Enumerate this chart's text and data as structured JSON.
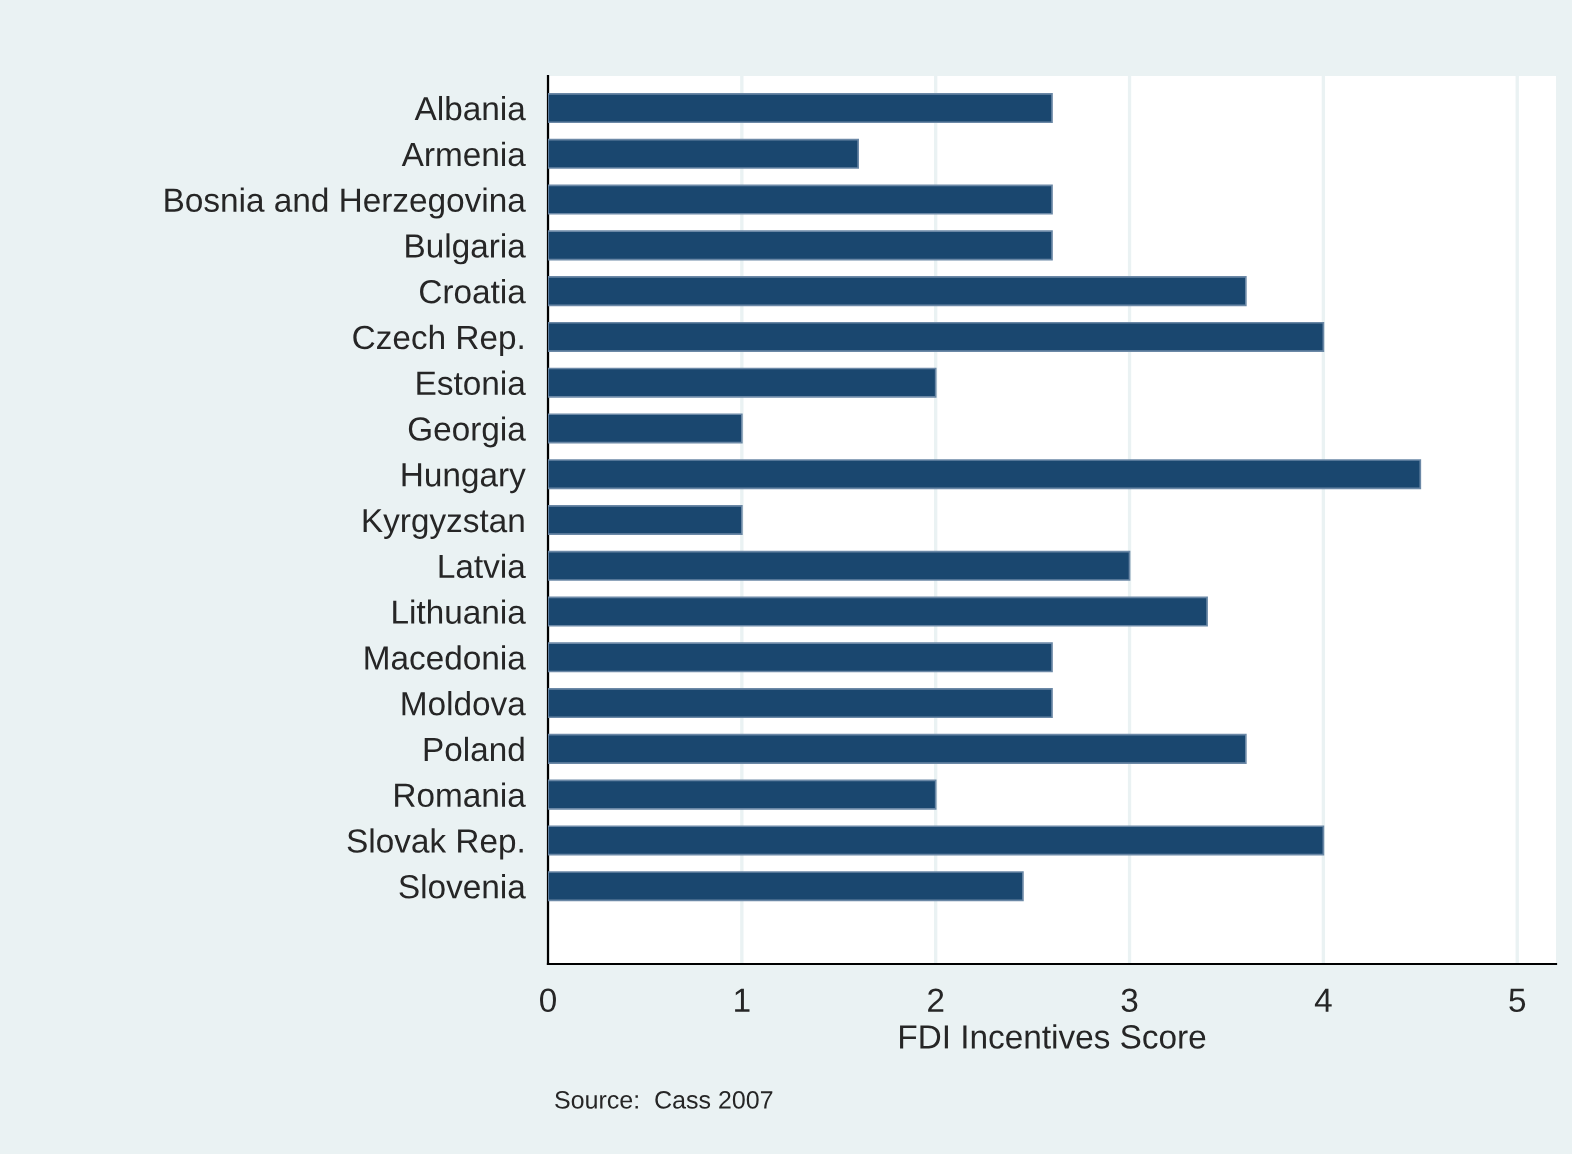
{
  "chart_data": {
    "type": "bar",
    "orientation": "horizontal",
    "categories": [
      "Albania",
      "Armenia",
      "Bosnia and Herzegovina",
      "Bulgaria",
      "Croatia",
      "Czech Rep.",
      "Estonia",
      "Georgia",
      "Hungary",
      "Kyrgyzstan",
      "Latvia",
      "Lithuania",
      "Macedonia",
      "Moldova",
      "Poland",
      "Romania",
      "Slovak Rep.",
      "Slovenia"
    ],
    "values": [
      2.6,
      1.6,
      2.6,
      2.6,
      3.6,
      4,
      2,
      1,
      4.5,
      1,
      3,
      3.4,
      2.6,
      2.6,
      3.6,
      2,
      4,
      2.45
    ],
    "color": "#1a476f",
    "xlabel": "FDI Incentives Score",
    "xlim": [
      0,
      5.2
    ],
    "xticks": [
      0,
      1,
      2,
      3,
      4,
      5
    ],
    "grid": "x",
    "annotations": [
      "Source:  Cass 2007"
    ]
  }
}
